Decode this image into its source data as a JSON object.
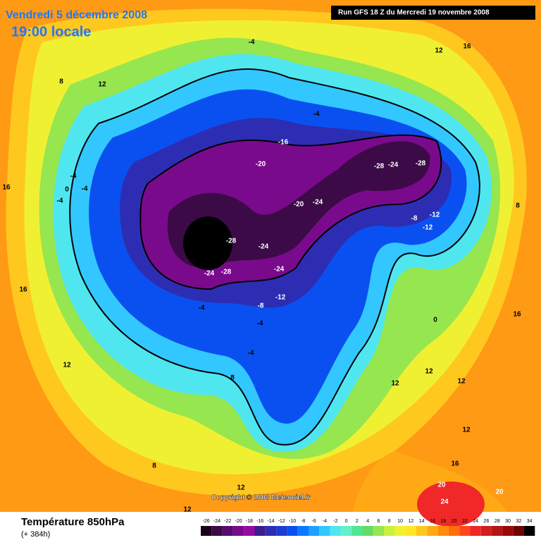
{
  "header": {
    "date": "Vendredi 5 décembre 2008",
    "time": "19:00 locale",
    "run": "Run GFS 18 Z du Mercredi 19 novembre 2008"
  },
  "footer": {
    "title": "Température 850hPa",
    "lead": "(+ 384h)",
    "copyright": "Copyright © 2008 Meteociel.fr"
  },
  "contour_labels": [
    -4,
    12,
    16,
    8,
    12,
    -4,
    -16,
    -20,
    -28,
    -24,
    -28,
    -4,
    0,
    -4,
    -4,
    16,
    -20,
    -24,
    -8,
    -12,
    -12,
    8,
    -28,
    -24,
    -24,
    -28,
    -24,
    -12,
    -8,
    -4,
    16,
    16,
    0,
    -4,
    -4,
    12,
    8,
    12,
    12,
    12,
    12,
    16,
    8,
    20,
    20,
    24,
    12,
    12
  ],
  "scale": {
    "ticks": [
      -26,
      -24,
      -22,
      -20,
      -18,
      -16,
      -14,
      -12,
      -10,
      -8,
      -6,
      -4,
      -2,
      0,
      2,
      4,
      6,
      8,
      10,
      12,
      14,
      16,
      18,
      20,
      22,
      24,
      26,
      28,
      30,
      32,
      34
    ],
    "colors": [
      "#1a001a",
      "#3c0a46",
      "#5a0a6e",
      "#7a0a8c",
      "#960aa0",
      "#3a1e8c",
      "#2d2db4",
      "#1e3cd2",
      "#0a50f0",
      "#0a78ff",
      "#1ea0ff",
      "#32c8ff",
      "#50e6f0",
      "#64f0c8",
      "#50e696",
      "#64dc64",
      "#96e650",
      "#c8f03c",
      "#f0f032",
      "#ffe628",
      "#ffc81e",
      "#ffaa14",
      "#ff8c0a",
      "#ff6e0a",
      "#ff461e",
      "#f02828",
      "#d21e1e",
      "#b41414",
      "#960a0a",
      "#6e0505",
      "#000000"
    ]
  }
}
